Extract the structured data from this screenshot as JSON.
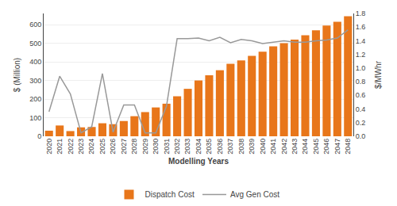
{
  "chart_data": {
    "type": "bar",
    "categories": [
      "2020",
      "2021",
      "2022",
      "2023",
      "2024",
      "2025",
      "2026",
      "2027",
      "2028",
      "2029",
      "2030",
      "2031",
      "2032",
      "2033",
      "2034",
      "2035",
      "2036",
      "2037",
      "2038",
      "2039",
      "2040",
      "2041",
      "2042",
      "2043",
      "2044",
      "2045",
      "2046",
      "2047",
      "2048"
    ],
    "series": [
      {
        "name": "Dispatch Cost",
        "type": "bar",
        "color": "#E8761A",
        "values": [
          30,
          58,
          28,
          48,
          50,
          70,
          65,
          82,
          108,
          130,
          155,
          175,
          215,
          255,
          300,
          328,
          355,
          390,
          408,
          432,
          455,
          483,
          500,
          520,
          543,
          570,
          595,
          615,
          645
        ]
      },
      {
        "name": "Avg Gen Cost",
        "type": "line",
        "color": "#999999",
        "axis": "y2",
        "values": [
          0.36,
          0.88,
          0.62,
          0.05,
          0.14,
          0.92,
          0.06,
          0.46,
          0.46,
          0.05,
          0.05,
          0.44,
          1.43,
          1.43,
          1.44,
          1.4,
          1.45,
          1.37,
          1.42,
          1.4,
          1.36,
          1.38,
          1.4,
          1.38,
          1.38,
          1.4,
          1.41,
          1.44,
          1.56
        ]
      }
    ],
    "xlabel": "Modelling Years",
    "ylabel": "$ (Million)",
    "y2label": "$/MWhr",
    "ylim": [
      0,
      660
    ],
    "yticks": [
      0,
      100,
      200,
      300,
      400,
      500,
      600
    ],
    "y2lim": [
      0,
      1.8
    ],
    "y2ticks": [
      {
        "value": 0.0,
        "label": "0.0"
      },
      0.2,
      0.4,
      0.6,
      0.8,
      {
        "value": 1.0,
        "label": "1.0"
      },
      1.2,
      1.4,
      1.6,
      1.8
    ],
    "grid": true,
    "legend": "bottom"
  }
}
